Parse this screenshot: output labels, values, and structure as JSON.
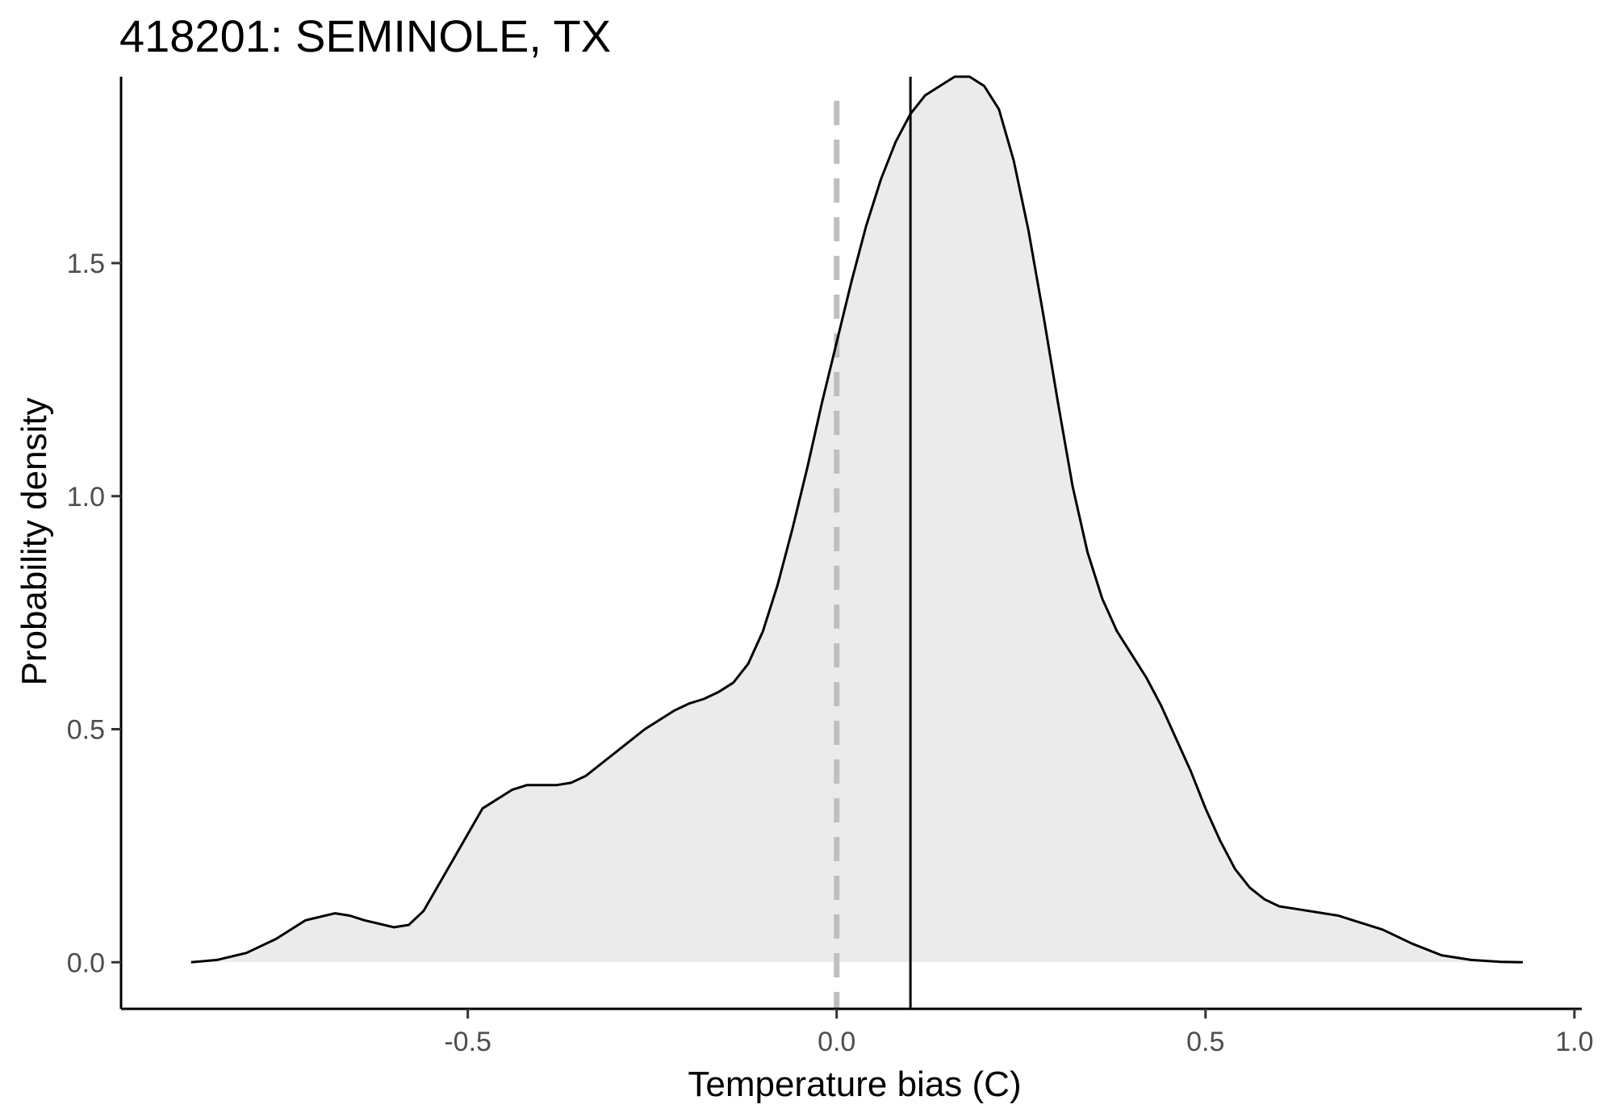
{
  "chart_data": {
    "type": "area",
    "title": "418201: SEMINOLE, TX",
    "xlabel": "Temperature bias (C)",
    "ylabel": "Probability density",
    "xlim": [
      -0.97,
      1.01
    ],
    "ylim": [
      -0.1,
      1.9
    ],
    "x_ticks": [
      -0.5,
      0.0,
      0.5,
      1.0
    ],
    "x_tick_labels": [
      "-0.5",
      "0.0",
      "0.5",
      "1.0"
    ],
    "y_ticks": [
      0.0,
      0.5,
      1.0,
      1.5
    ],
    "y_tick_labels": [
      "0.0",
      "0.5",
      "1.0",
      "1.5"
    ],
    "grid": false,
    "reference_lines": [
      {
        "x": 0.0,
        "style": "dashed",
        "color": "#bfbfbf"
      },
      {
        "x": 0.1,
        "style": "solid",
        "color": "#000000"
      }
    ],
    "fill_color": "#ebebeb",
    "line_color": "#000000",
    "density": {
      "x": [
        -0.875,
        -0.84,
        -0.8,
        -0.76,
        -0.72,
        -0.68,
        -0.66,
        -0.64,
        -0.6,
        -0.58,
        -0.56,
        -0.52,
        -0.48,
        -0.44,
        -0.42,
        -0.4,
        -0.38,
        -0.36,
        -0.34,
        -0.3,
        -0.26,
        -0.22,
        -0.2,
        -0.18,
        -0.16,
        -0.14,
        -0.12,
        -0.1,
        -0.08,
        -0.06,
        -0.04,
        -0.02,
        0.0,
        0.02,
        0.04,
        0.06,
        0.08,
        0.1,
        0.12,
        0.14,
        0.16,
        0.18,
        0.2,
        0.22,
        0.24,
        0.26,
        0.28,
        0.3,
        0.32,
        0.34,
        0.36,
        0.38,
        0.4,
        0.42,
        0.44,
        0.46,
        0.48,
        0.5,
        0.52,
        0.54,
        0.56,
        0.58,
        0.6,
        0.62,
        0.64,
        0.66,
        0.68,
        0.7,
        0.74,
        0.78,
        0.82,
        0.86,
        0.9,
        0.93
      ],
      "y": [
        0.0,
        0.005,
        0.02,
        0.05,
        0.09,
        0.105,
        0.1,
        0.09,
        0.075,
        0.08,
        0.11,
        0.22,
        0.33,
        0.37,
        0.38,
        0.38,
        0.38,
        0.385,
        0.4,
        0.45,
        0.5,
        0.54,
        0.555,
        0.565,
        0.58,
        0.6,
        0.64,
        0.71,
        0.81,
        0.93,
        1.06,
        1.2,
        1.33,
        1.46,
        1.58,
        1.68,
        1.76,
        1.82,
        1.86,
        1.88,
        1.9,
        1.9,
        1.88,
        1.83,
        1.72,
        1.57,
        1.39,
        1.2,
        1.02,
        0.88,
        0.78,
        0.71,
        0.66,
        0.61,
        0.55,
        0.48,
        0.41,
        0.33,
        0.26,
        0.2,
        0.16,
        0.135,
        0.12,
        0.115,
        0.11,
        0.105,
        0.1,
        0.09,
        0.07,
        0.04,
        0.015,
        0.005,
        0.001,
        0.0
      ]
    }
  }
}
